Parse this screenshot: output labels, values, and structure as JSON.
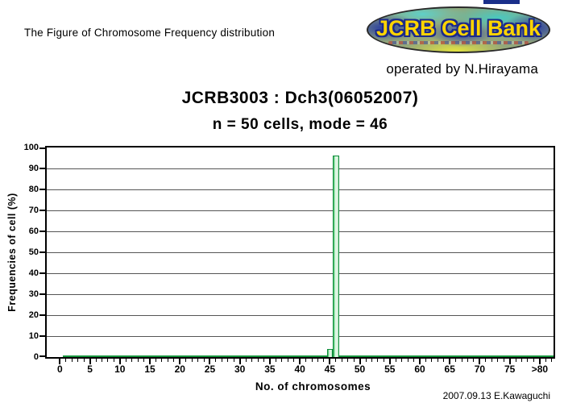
{
  "page": {
    "header_note": "The Figure of Chromosome Frequency distribution",
    "operated_by": "operated by N.Hirayama",
    "footer_credit": "2007.09.13 E.Kawaguchi",
    "background": "#ffffff"
  },
  "logo": {
    "text": "JCRB Cell Bank",
    "text_color": "#ffd400",
    "outline_color": "#1c2a8a",
    "base_color": "#93a77a"
  },
  "chart_data": {
    "type": "bar",
    "title_line1": "JCRB3003 : Dch3(06052007)",
    "title_line2": "n = 50 cells, mode = 46",
    "xlabel": "No. of chromosomes",
    "ylabel": "Frequencies of cell (%)",
    "n_cells": 50,
    "mode": 46,
    "xlim": [
      -2.2,
      82.3
    ],
    "ylim": [
      0,
      100
    ],
    "grid": "horizontal-only",
    "legend": "none",
    "y_ticks": [
      0,
      10,
      20,
      30,
      40,
      50,
      60,
      70,
      80,
      90,
      100
    ],
    "x_major_ticks": [
      {
        "value": 0,
        "label": "0"
      },
      {
        "value": 5,
        "label": "5"
      },
      {
        "value": 10,
        "label": "10"
      },
      {
        "value": 15,
        "label": "15"
      },
      {
        "value": 20,
        "label": "20"
      },
      {
        "value": 25,
        "label": "25"
      },
      {
        "value": 30,
        "label": "30"
      },
      {
        "value": 35,
        "label": "35"
      },
      {
        "value": 40,
        "label": "40"
      },
      {
        "value": 45,
        "label": "45"
      },
      {
        "value": 50,
        "label": "50"
      },
      {
        "value": 55,
        "label": "55"
      },
      {
        "value": 60,
        "label": "60"
      },
      {
        "value": 65,
        "label": "65"
      },
      {
        "value": 70,
        "label": "70"
      },
      {
        "value": 75,
        "label": "75"
      },
      {
        "value": 80,
        "label": ">80"
      }
    ],
    "x_minor_tick_range": [
      0,
      82
    ],
    "bars": [
      {
        "x": 45,
        "percent": 4
      },
      {
        "x": 46,
        "percent": 96
      }
    ],
    "other_bins_percent": 0,
    "bar_border_color": "#0d8c3a",
    "baseline_color": "#18953e",
    "gridline_color": "#555555"
  }
}
